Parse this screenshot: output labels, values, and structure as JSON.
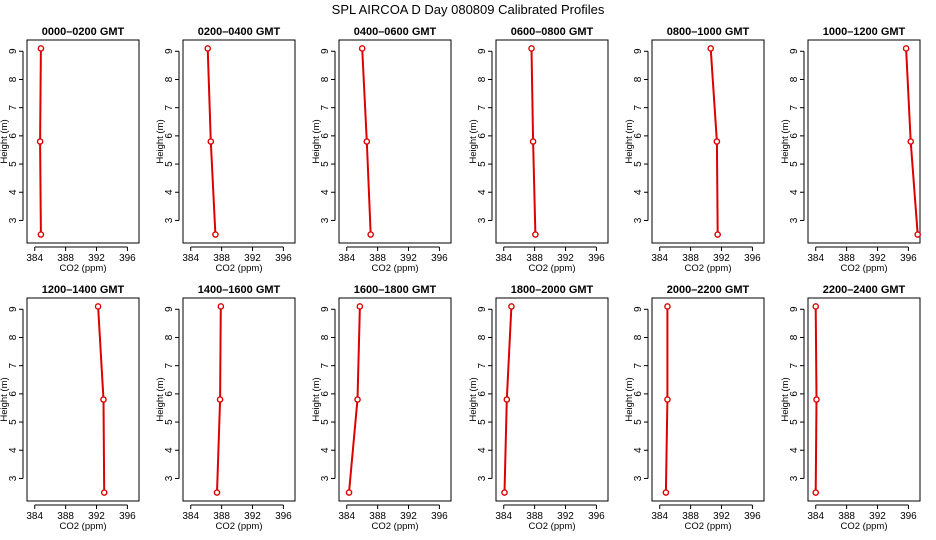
{
  "figure": {
    "title": "SPL AIRCOA D  Day 080809  Calibrated Profiles"
  },
  "colors": {
    "series": "#dd0000",
    "axis": "#000000",
    "background": "#ffffff"
  },
  "chart_data": [
    {
      "type": "line",
      "title": "0000–0200 GMT",
      "xlabel": "CO2 (ppm)",
      "ylabel": "Height (m)",
      "xlim": [
        383,
        397.5
      ],
      "ylim": [
        2.2,
        9.4
      ],
      "xticks": [
        384,
        388,
        392,
        396
      ],
      "yticks": [
        3,
        4,
        5,
        6,
        7,
        8,
        9
      ],
      "grid": false,
      "x": [
        384.8,
        384.7,
        384.8
      ],
      "y": [
        9.1,
        5.8,
        2.5
      ]
    },
    {
      "type": "line",
      "title": "0200–0400 GMT",
      "xlabel": "CO2 (ppm)",
      "ylabel": "Height (m)",
      "xlim": [
        383,
        397.5
      ],
      "ylim": [
        2.2,
        9.4
      ],
      "xticks": [
        384,
        388,
        392,
        396
      ],
      "yticks": [
        3,
        4,
        5,
        6,
        7,
        8,
        9
      ],
      "grid": false,
      "x": [
        386.2,
        386.6,
        387.2
      ],
      "y": [
        9.1,
        5.8,
        2.5
      ]
    },
    {
      "type": "line",
      "title": "0400–0600 GMT",
      "xlabel": "CO2 (ppm)",
      "ylabel": "Height (m)",
      "xlim": [
        383,
        397.5
      ],
      "ylim": [
        2.2,
        9.4
      ],
      "xticks": [
        384,
        388,
        392,
        396
      ],
      "yticks": [
        3,
        4,
        5,
        6,
        7,
        8,
        9
      ],
      "grid": false,
      "x": [
        386.0,
        386.6,
        387.1
      ],
      "y": [
        9.1,
        5.8,
        2.5
      ]
    },
    {
      "type": "line",
      "title": "0600–0800 GMT",
      "xlabel": "CO2 (ppm)",
      "ylabel": "Height (m)",
      "xlim": [
        383,
        397.5
      ],
      "ylim": [
        2.2,
        9.4
      ],
      "xticks": [
        384,
        388,
        392,
        396
      ],
      "yticks": [
        3,
        4,
        5,
        6,
        7,
        8,
        9
      ],
      "grid": false,
      "x": [
        387.6,
        387.8,
        388.1
      ],
      "y": [
        9.1,
        5.8,
        2.5
      ]
    },
    {
      "type": "line",
      "title": "0800–1000 GMT",
      "xlabel": "CO2 (ppm)",
      "ylabel": "Height (m)",
      "xlim": [
        383,
        397.5
      ],
      "ylim": [
        2.2,
        9.4
      ],
      "xticks": [
        384,
        388,
        392,
        396
      ],
      "yticks": [
        3,
        4,
        5,
        6,
        7,
        8,
        9
      ],
      "grid": false,
      "x": [
        390.6,
        391.4,
        391.5
      ],
      "y": [
        9.1,
        5.8,
        2.5
      ]
    },
    {
      "type": "line",
      "title": "1000–1200 GMT",
      "xlabel": "CO2 (ppm)",
      "ylabel": "Height (m)",
      "xlim": [
        383,
        397.5
      ],
      "ylim": [
        2.2,
        9.4
      ],
      "xticks": [
        384,
        388,
        392,
        396
      ],
      "yticks": [
        3,
        4,
        5,
        6,
        7,
        8,
        9
      ],
      "grid": false,
      "x": [
        395.7,
        396.3,
        397.2
      ],
      "y": [
        9.1,
        5.8,
        2.5
      ]
    },
    {
      "type": "line",
      "title": "1200–1400 GMT",
      "xlabel": "CO2 (ppm)",
      "ylabel": "Height (m)",
      "xlim": [
        383,
        397.5
      ],
      "ylim": [
        2.2,
        9.4
      ],
      "xticks": [
        384,
        388,
        392,
        396
      ],
      "yticks": [
        3,
        4,
        5,
        6,
        7,
        8,
        9
      ],
      "grid": false,
      "x": [
        392.2,
        392.9,
        393.0
      ],
      "y": [
        9.1,
        5.8,
        2.5
      ]
    },
    {
      "type": "line",
      "title": "1400–1600 GMT",
      "xlabel": "CO2 (ppm)",
      "ylabel": "Height (m)",
      "xlim": [
        383,
        397.5
      ],
      "ylim": [
        2.2,
        9.4
      ],
      "xticks": [
        384,
        388,
        392,
        396
      ],
      "yticks": [
        3,
        4,
        5,
        6,
        7,
        8,
        9
      ],
      "grid": false,
      "x": [
        387.9,
        387.8,
        387.4
      ],
      "y": [
        9.1,
        5.8,
        2.5
      ]
    },
    {
      "type": "line",
      "title": "1600–1800 GMT",
      "xlabel": "CO2 (ppm)",
      "ylabel": "Height (m)",
      "xlim": [
        383,
        397.5
      ],
      "ylim": [
        2.2,
        9.4
      ],
      "xticks": [
        384,
        388,
        392,
        396
      ],
      "yticks": [
        3,
        4,
        5,
        6,
        7,
        8,
        9
      ],
      "grid": false,
      "x": [
        385.7,
        385.4,
        384.3
      ],
      "y": [
        9.1,
        5.8,
        2.5
      ]
    },
    {
      "type": "line",
      "title": "1800–2000 GMT",
      "xlabel": "CO2 (ppm)",
      "ylabel": "Height (m)",
      "xlim": [
        383,
        397.5
      ],
      "ylim": [
        2.2,
        9.4
      ],
      "xticks": [
        384,
        388,
        392,
        396
      ],
      "yticks": [
        3,
        4,
        5,
        6,
        7,
        8,
        9
      ],
      "grid": false,
      "x": [
        385.0,
        384.4,
        384.1
      ],
      "y": [
        9.1,
        5.8,
        2.5
      ]
    },
    {
      "type": "line",
      "title": "2000–2200 GMT",
      "xlabel": "CO2 (ppm)",
      "ylabel": "Height (m)",
      "xlim": [
        383,
        397.5
      ],
      "ylim": [
        2.2,
        9.4
      ],
      "xticks": [
        384,
        388,
        392,
        396
      ],
      "yticks": [
        3,
        4,
        5,
        6,
        7,
        8,
        9
      ],
      "grid": false,
      "x": [
        385.0,
        385.0,
        384.8
      ],
      "y": [
        9.1,
        5.8,
        2.5
      ]
    },
    {
      "type": "line",
      "title": "2200–2400 GMT",
      "xlabel": "CO2 (ppm)",
      "ylabel": "Height (m)",
      "xlim": [
        383,
        397.5
      ],
      "ylim": [
        2.2,
        9.4
      ],
      "xticks": [
        384,
        388,
        392,
        396
      ],
      "yticks": [
        3,
        4,
        5,
        6,
        7,
        8,
        9
      ],
      "grid": false,
      "x": [
        384.0,
        384.1,
        384.0
      ],
      "y": [
        9.1,
        5.8,
        2.5
      ]
    }
  ]
}
